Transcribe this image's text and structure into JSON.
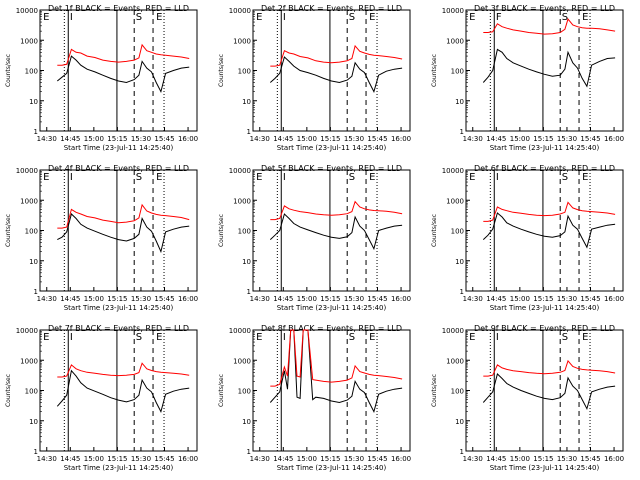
{
  "panel_common": {
    "ylabel": "Counts/sec",
    "xlabel": "Start Time (23-Jul-11 14:25:40)",
    "x_ticks": [
      "14:30",
      "14:45",
      "15:00",
      "15:15",
      "15:30",
      "15:45",
      "16:00"
    ],
    "y_ticks": [
      "1",
      "10",
      "100",
      "1000",
      "10000"
    ],
    "markers": {
      "left": "E",
      "right": "E",
      "mid1": "I",
      "mid2": "S"
    }
  },
  "colors": {
    "events": "#000000",
    "lld": "#ff0000"
  },
  "chart_data": [
    {
      "type": "line",
      "title": "Det 1f BLACK = Events, RED = LLD",
      "markers_shown": [
        "E",
        "I",
        "S",
        "E"
      ],
      "x_minutes": [
        11,
        14,
        17,
        20,
        23,
        26,
        30,
        35,
        40,
        45,
        50,
        55,
        60,
        63,
        65,
        68,
        71,
        74,
        77,
        80,
        85,
        90,
        95
      ],
      "series": [
        {
          "name": "Events",
          "values": [
            45,
            60,
            80,
            300,
            220,
            150,
            110,
            90,
            70,
            55,
            45,
            40,
            50,
            70,
            200,
            120,
            90,
            40,
            20,
            80,
            100,
            120,
            130
          ]
        },
        {
          "name": "LLD",
          "values": [
            150,
            150,
            160,
            500,
            400,
            380,
            300,
            270,
            220,
            200,
            190,
            200,
            220,
            260,
            700,
            450,
            400,
            350,
            330,
            320,
            300,
            280,
            250
          ]
        }
      ]
    },
    {
      "type": "line",
      "title": "Det 2f BLACK = Events, RED = LLD",
      "markers_shown": [
        "E",
        "I",
        "S",
        "E"
      ],
      "x_minutes": [
        11,
        14,
        17,
        20,
        23,
        26,
        30,
        35,
        40,
        45,
        50,
        55,
        60,
        63,
        65,
        68,
        71,
        74,
        77,
        80,
        85,
        90,
        95
      ],
      "series": [
        {
          "name": "Events",
          "values": [
            40,
            55,
            80,
            280,
            200,
            140,
            100,
            85,
            70,
            55,
            45,
            40,
            48,
            65,
            180,
            110,
            85,
            40,
            20,
            70,
            95,
            110,
            120
          ]
        },
        {
          "name": "LLD",
          "values": [
            140,
            140,
            150,
            450,
            380,
            350,
            290,
            260,
            210,
            190,
            180,
            190,
            210,
            250,
            650,
            430,
            380,
            340,
            320,
            310,
            290,
            270,
            240
          ]
        }
      ]
    },
    {
      "type": "line",
      "title": "Det 3f BLACK = Events, RED = LLD",
      "markers_shown": [
        "E",
        "F",
        "S",
        "E"
      ],
      "x_minutes": [
        11,
        14,
        17,
        20,
        23,
        26,
        30,
        35,
        40,
        45,
        50,
        55,
        60,
        63,
        65,
        68,
        71,
        74,
        77,
        80,
        85,
        90,
        95
      ],
      "series": [
        {
          "name": "Events",
          "values": [
            40,
            60,
            100,
            500,
            400,
            250,
            180,
            140,
            110,
            90,
            75,
            65,
            70,
            110,
            400,
            180,
            120,
            55,
            30,
            150,
            200,
            250,
            260
          ]
        },
        {
          "name": "LLD",
          "values": [
            1800,
            1800,
            1900,
            3500,
            2800,
            2500,
            2200,
            2000,
            1800,
            1700,
            1600,
            1650,
            1800,
            2300,
            5000,
            3200,
            2800,
            2600,
            2500,
            2500,
            2400,
            2200,
            2000
          ]
        }
      ]
    },
    {
      "type": "line",
      "title": "Det 4f BLACK = Events, RED = LLD",
      "markers_shown": [
        "E",
        "I",
        "S",
        "E"
      ],
      "x_minutes": [
        11,
        14,
        17,
        20,
        23,
        26,
        30,
        35,
        40,
        45,
        50,
        55,
        60,
        63,
        65,
        68,
        71,
        74,
        77,
        80,
        85,
        90,
        95
      ],
      "series": [
        {
          "name": "Events",
          "values": [
            50,
            60,
            90,
            350,
            250,
            160,
            120,
            95,
            75,
            60,
            50,
            45,
            55,
            75,
            250,
            130,
            95,
            45,
            20,
            90,
            110,
            130,
            140
          ]
        },
        {
          "name": "LLD",
          "values": [
            120,
            120,
            130,
            500,
            400,
            350,
            290,
            260,
            220,
            200,
            180,
            190,
            210,
            260,
            700,
            440,
            380,
            340,
            320,
            310,
            290,
            270,
            230
          ]
        }
      ]
    },
    {
      "type": "line",
      "title": "Det 5f BLACK = Events, RED = LLD",
      "markers_shown": [
        "E",
        "I",
        "S",
        "E"
      ],
      "x_minutes": [
        11,
        14,
        17,
        20,
        23,
        26,
        30,
        35,
        40,
        45,
        50,
        55,
        60,
        63,
        65,
        68,
        71,
        74,
        77,
        80,
        85,
        90,
        95
      ],
      "series": [
        {
          "name": "Events",
          "values": [
            50,
            70,
            100,
            350,
            250,
            170,
            130,
            105,
            85,
            70,
            60,
            55,
            62,
            85,
            280,
            140,
            100,
            50,
            25,
            100,
            120,
            140,
            150
          ]
        },
        {
          "name": "LLD",
          "values": [
            230,
            230,
            250,
            650,
            520,
            470,
            420,
            390,
            350,
            330,
            320,
            330,
            360,
            420,
            900,
            600,
            520,
            480,
            460,
            450,
            430,
            400,
            360
          ]
        }
      ]
    },
    {
      "type": "line",
      "title": "Det 6f BLACK = Events, RED = LLD",
      "markers_shown": [
        "E",
        "I",
        "S",
        "E"
      ],
      "x_minutes": [
        11,
        14,
        17,
        20,
        23,
        26,
        30,
        35,
        40,
        45,
        50,
        55,
        60,
        63,
        65,
        68,
        71,
        74,
        77,
        80,
        85,
        90,
        95
      ],
      "series": [
        {
          "name": "Events",
          "values": [
            50,
            70,
            110,
            380,
            280,
            180,
            140,
            110,
            90,
            75,
            65,
            60,
            68,
            90,
            300,
            150,
            110,
            55,
            28,
            110,
            130,
            150,
            160
          ]
        },
        {
          "name": "LLD",
          "values": [
            200,
            200,
            220,
            600,
            500,
            450,
            400,
            370,
            340,
            320,
            310,
            320,
            350,
            400,
            850,
            560,
            490,
            450,
            430,
            420,
            400,
            380,
            340
          ]
        }
      ]
    },
    {
      "type": "line",
      "title": "Det 7f BLACK = Events, RED = LLD",
      "markers_shown": [
        "E",
        "I",
        "S",
        "E"
      ],
      "x_minutes": [
        11,
        14,
        17,
        20,
        23,
        26,
        30,
        35,
        40,
        45,
        50,
        55,
        60,
        63,
        65,
        68,
        71,
        74,
        77,
        80,
        85,
        90,
        95
      ],
      "series": [
        {
          "name": "Events",
          "values": [
            30,
            45,
            70,
            450,
            300,
            180,
            120,
            95,
            75,
            58,
            48,
            42,
            50,
            70,
            220,
            120,
            90,
            40,
            20,
            75,
            95,
            110,
            120
          ]
        },
        {
          "name": "LLD",
          "values": [
            280,
            280,
            300,
            700,
            520,
            450,
            400,
            370,
            340,
            320,
            310,
            320,
            340,
            390,
            800,
            520,
            460,
            420,
            400,
            390,
            370,
            350,
            320
          ]
        }
      ]
    },
    {
      "type": "line",
      "title": "Det 8f BLACK = Events, RED = LLD",
      "markers_shown": [
        "E",
        "I",
        "S",
        "E"
      ],
      "x_minutes": [
        11,
        14,
        17,
        20,
        22,
        24,
        26,
        28,
        30,
        32,
        35,
        38,
        40,
        45,
        50,
        55,
        60,
        63,
        65,
        68,
        71,
        74,
        77,
        80,
        85,
        90,
        95
      ],
      "series": [
        {
          "name": "Events",
          "values": [
            40,
            60,
            90,
            450,
            110,
            10000,
            10000,
            60,
            55,
            10000,
            10000,
            50,
            60,
            55,
            45,
            40,
            48,
            65,
            200,
            110,
            85,
            40,
            20,
            75,
            95,
            110,
            120
          ]
        },
        {
          "name": "LLD",
          "values": [
            140,
            140,
            160,
            600,
            300,
            10000,
            10000,
            300,
            280,
            10000,
            10000,
            230,
            220,
            200,
            190,
            200,
            220,
            260,
            650,
            420,
            380,
            340,
            320,
            310,
            290,
            270,
            240
          ]
        }
      ]
    },
    {
      "type": "line",
      "title": "Det 9f BLACK = Events, RED = LLD",
      "markers_shown": [
        "E",
        "I",
        "S",
        "E"
      ],
      "x_minutes": [
        11,
        14,
        17,
        20,
        23,
        26,
        30,
        35,
        40,
        45,
        50,
        55,
        60,
        63,
        65,
        68,
        71,
        74,
        77,
        80,
        85,
        90,
        95
      ],
      "series": [
        {
          "name": "Events",
          "values": [
            40,
            60,
            90,
            350,
            250,
            170,
            130,
            100,
            80,
            65,
            55,
            50,
            58,
            80,
            260,
            140,
            100,
            50,
            25,
            90,
            110,
            130,
            140
          ]
        },
        {
          "name": "LLD",
          "values": [
            300,
            300,
            320,
            700,
            560,
            500,
            450,
            420,
            390,
            370,
            360,
            370,
            400,
            460,
            950,
            620,
            540,
            500,
            480,
            470,
            450,
            420,
            380
          ]
        }
      ]
    }
  ]
}
